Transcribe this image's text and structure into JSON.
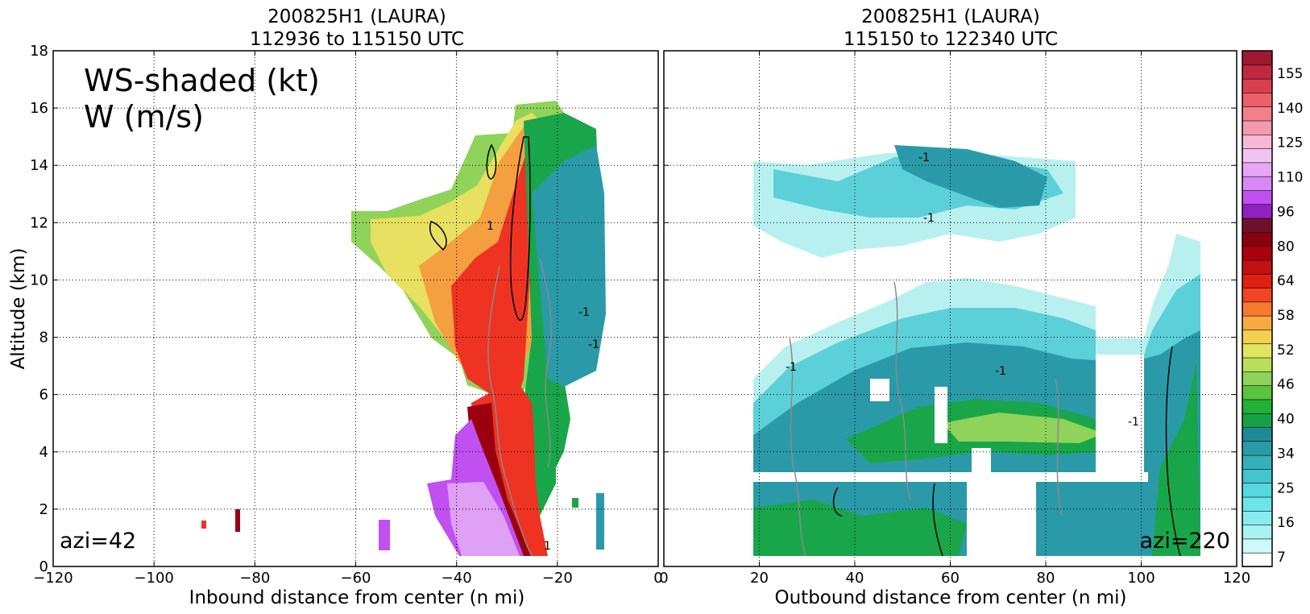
{
  "colors": {
    "cloud_light": "#b8f0f0",
    "cloud_mid": "#5cd0d8",
    "teal": "#2a9aa8",
    "teal_dark": "#1f8a97",
    "green": "#19a64a",
    "light_green": "#8fd35a",
    "yellow": "#f0e060",
    "orange": "#f5a040",
    "red": "#ee3322",
    "dark_red": "#9a0010",
    "purple": "#c050f0",
    "light_purple": "#e0a0f5",
    "contour_black": "#000000",
    "contour_gray": "#8a8a8a"
  },
  "chart_data": [
    {
      "type": "heatmap",
      "panel": "left",
      "title_line1": "200825H1 (LAURA)",
      "title_line2": "112936 to 115150 UTC",
      "xlabel": "Inbound distance from center (n mi)",
      "ylabel": "Altitude (km)",
      "xlim": [
        -120,
        0
      ],
      "ylim": [
        0,
        18
      ],
      "xticks": [
        -120,
        -100,
        -80,
        -60,
        -40,
        -20,
        0
      ],
      "yticks": [
        0,
        2,
        4,
        6,
        8,
        10,
        12,
        14,
        16,
        18
      ],
      "grid": true,
      "annotation_line1": "WS-shaded (kt)",
      "annotation_line2": "W (m/s)",
      "azimuth_label": "azi=42",
      "contour_label": "1",
      "contour_label_neg": "-1"
    },
    {
      "type": "heatmap",
      "panel": "right",
      "title_line1": "200825H1 (LAURA)",
      "title_line2": "115150 to 122340 UTC",
      "xlabel": "Outbound distance from center (n mi)",
      "xlim": [
        0,
        120
      ],
      "ylim": [
        0,
        18
      ],
      "xticks": [
        0,
        20,
        40,
        60,
        80,
        100,
        120
      ],
      "yticks": [
        0,
        2,
        4,
        6,
        8,
        10,
        12,
        14,
        16,
        18
      ],
      "grid": true,
      "azimuth_label": "azi=220",
      "contour_label_neg": "-1"
    }
  ],
  "colorbar": {
    "labels": [
      "7",
      "16",
      "25",
      "34",
      "40",
      "46",
      "52",
      "58",
      "64",
      "80",
      "96",
      "110",
      "125",
      "140",
      "155"
    ],
    "bands": [
      "#ffffff",
      "#ccf8f8",
      "#aaf2f2",
      "#88ecee",
      "#6ce4ea",
      "#55d8e0",
      "#44c4cc",
      "#36b0b8",
      "#2a9ca8",
      "#1f8a97",
      "#16a146",
      "#22b038",
      "#5ac43c",
      "#8fd35a",
      "#b8df5a",
      "#e0e460",
      "#f2d050",
      "#f6aa40",
      "#f47a30",
      "#f04422",
      "#e02010",
      "#c41010",
      "#aa0010",
      "#8a0010",
      "#70102a",
      "#9020c0",
      "#c050f0",
      "#d888f5",
      "#e4a6f5",
      "#f2c4f2",
      "#f8b8d4",
      "#f49aae",
      "#f2808a",
      "#ec6068",
      "#d84050",
      "#c02840",
      "#a01830"
    ]
  }
}
